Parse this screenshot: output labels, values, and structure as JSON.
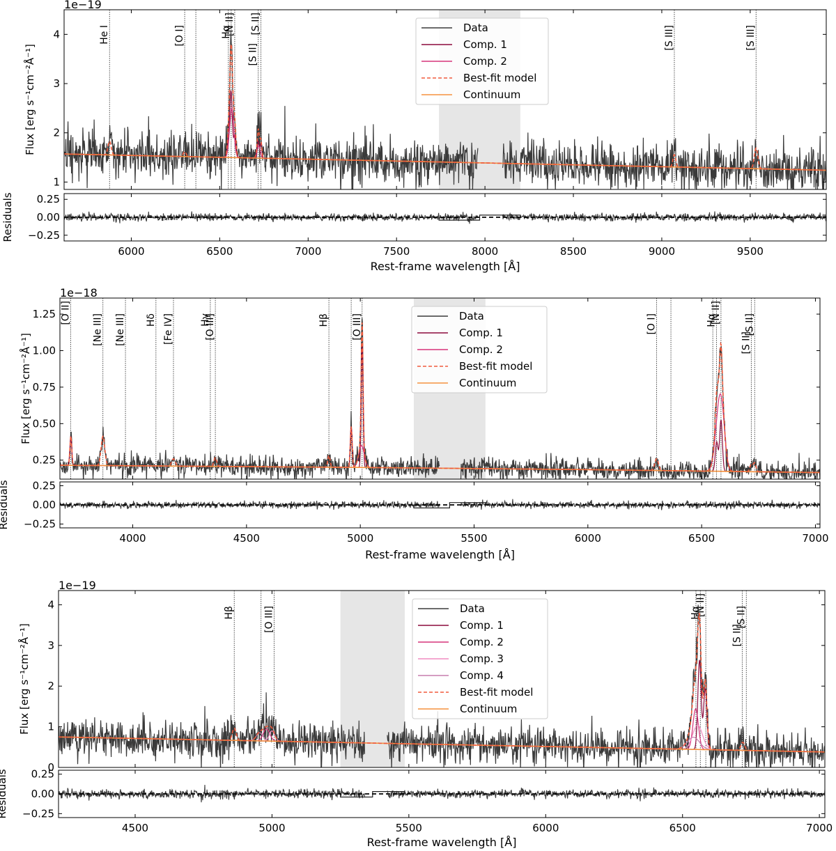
{
  "chart_data": [
    {
      "type": "line",
      "panel": "top",
      "multiplier_label": "1e−19",
      "xlabel": "Rest-frame wavelength [Å]",
      "ylabel": "Flux [erg s⁻¹cm⁻²Å⁻¹]",
      "residuals_label": "Residuals",
      "xlim": [
        5620,
        9930
      ],
      "ylim": [
        0.85,
        4.5
      ],
      "res_ylim": [
        -0.33,
        0.33
      ],
      "xticks": [
        6000,
        6500,
        7000,
        7500,
        8000,
        8500,
        9000,
        9500
      ],
      "yticks": [
        1,
        2,
        3,
        4
      ],
      "res_yticks": [
        -0.25,
        0.0,
        0.25
      ],
      "res_ytick_labels": [
        "−0.25",
        "0.00",
        "0.25"
      ],
      "masked_region": [
        7740,
        8200
      ],
      "gap_region": [
        7960,
        8100
      ],
      "continuum": {
        "x": [
          5620,
          9930
        ],
        "y": [
          1.57,
          1.24
        ]
      },
      "noise": 0.22,
      "components": [
        {
          "name": "Comp. 1",
          "lines": [
            {
              "center": 6564,
              "amp": 1.35,
              "sigma": 7
            },
            {
              "center": 6549,
              "amp": 0.3,
              "sigma": 6
            },
            {
              "center": 6585,
              "amp": 0.45,
              "sigma": 6
            },
            {
              "center": 6718,
              "amp": 0.35,
              "sigma": 5
            },
            {
              "center": 6733,
              "amp": 0.3,
              "sigma": 5
            }
          ]
        },
        {
          "name": "Comp. 2",
          "lines": [
            {
              "center": 6568,
              "amp": 1.0,
              "sigma": 12
            },
            {
              "center": 6720,
              "amp": 0.25,
              "sigma": 9
            }
          ]
        }
      ],
      "extra_model_lines": [
        {
          "center": 5877,
          "amp": 0.28,
          "sigma": 9
        },
        {
          "center": 6302,
          "amp": 0.1,
          "sigma": 8
        },
        {
          "center": 9071,
          "amp": 0.25,
          "sigma": 8
        },
        {
          "center": 9533,
          "amp": 0.42,
          "sigma": 10
        }
      ],
      "line_markers": [
        {
          "x": 5877,
          "label": "He I",
          "row": 1
        },
        {
          "x": 6302,
          "label": "[O I]",
          "row": 1
        },
        {
          "x": 6365,
          "label": "",
          "row": 1
        },
        {
          "x": 6549,
          "label": "",
          "row": 1
        },
        {
          "x": 6565,
          "label": "Hα",
          "row": 1
        },
        {
          "x": 6585,
          "label": "[N II]",
          "row": 0
        },
        {
          "x": 6718,
          "label": "[S II]",
          "row": 2
        },
        {
          "x": 6733,
          "label": "[S II]",
          "row": 0
        },
        {
          "x": 9071,
          "label": "[S III]",
          "row": 1
        },
        {
          "x": 9533,
          "label": "[S III]",
          "row": 1
        }
      ],
      "legend": [
        "Data",
        "Comp. 1",
        "Comp. 2",
        "Best-fit model",
        "Continuum"
      ]
    },
    {
      "type": "line",
      "panel": "middle",
      "multiplier_label": "1e−18",
      "xlabel": "Rest-frame wavelength [Å]",
      "ylabel": "Flux [erg s⁻¹cm⁻²Å⁻¹]",
      "residuals_label": "Residuals",
      "xlim": [
        3680,
        7020
      ],
      "ylim": [
        0.12,
        1.36
      ],
      "res_ylim": [
        -0.3,
        0.3
      ],
      "xticks": [
        4000,
        4500,
        5000,
        5500,
        6000,
        6500,
        7000
      ],
      "yticks": [
        0.25,
        0.5,
        0.75,
        1.0,
        1.25
      ],
      "ytick_labels": [
        "0.25",
        "0.50",
        "0.75",
        "1.00",
        "1.25"
      ],
      "res_yticks": [
        -0.25,
        0.0,
        0.25
      ],
      "res_ytick_labels": [
        "−0.25",
        "0.00",
        "0.25"
      ],
      "masked_region": [
        5235,
        5550
      ],
      "gap_region": [
        5350,
        5440
      ],
      "continuum": {
        "x": [
          3680,
          5000,
          6000,
          7020
        ],
        "y": [
          0.215,
          0.2,
          0.185,
          0.165
        ]
      },
      "noise": 0.035,
      "components": [
        {
          "name": "Comp. 1",
          "lines": [
            {
              "center": 5008,
              "amp": 0.85,
              "sigma": 4
            },
            {
              "center": 4960,
              "amp": 0.28,
              "sigma": 4
            },
            {
              "center": 6566,
              "amp": 0.2,
              "sigma": 6
            },
            {
              "center": 6585,
              "amp": 0.35,
              "sigma": 6
            },
            {
              "center": 3728,
              "amp": 0.2,
              "sigma": 4
            }
          ]
        },
        {
          "name": "Comp. 2",
          "lines": [
            {
              "center": 5005,
              "amp": 0.15,
              "sigma": 12
            },
            {
              "center": 6575,
              "amp": 0.35,
              "sigma": 16
            },
            {
              "center": 6590,
              "amp": 0.25,
              "sigma": 14
            }
          ]
        }
      ],
      "extra_model_lines": [
        {
          "center": 3869,
          "amp": 0.2,
          "sigma": 8
        },
        {
          "center": 4179,
          "amp": 0.05,
          "sigma": 8
        },
        {
          "center": 4363,
          "amp": 0.06,
          "sigma": 6
        },
        {
          "center": 4862,
          "amp": 0.08,
          "sigma": 5
        },
        {
          "center": 6302,
          "amp": 0.08,
          "sigma": 8
        },
        {
          "center": 6718,
          "amp": 0.05,
          "sigma": 6
        },
        {
          "center": 6733,
          "amp": 0.06,
          "sigma": 6
        }
      ],
      "line_markers": [
        {
          "x": 3727,
          "label": "[O II]",
          "row": 0
        },
        {
          "x": 3869,
          "label": "[Ne III]",
          "row": 1
        },
        {
          "x": 3968,
          "label": "[Ne III]",
          "row": 1
        },
        {
          "x": 4102,
          "label": "Hδ",
          "row": 1
        },
        {
          "x": 4179,
          "label": "[Fe IV]",
          "row": 1
        },
        {
          "x": 4341,
          "label": "Hγ",
          "row": 1
        },
        {
          "x": 4363,
          "label": "[O III]",
          "row": 1
        },
        {
          "x": 4862,
          "label": "Hβ",
          "row": 1
        },
        {
          "x": 4960,
          "label": "",
          "row": 1
        },
        {
          "x": 5008,
          "label": "[O III]",
          "row": 1
        },
        {
          "x": 6302,
          "label": "[O I]",
          "row": 1
        },
        {
          "x": 6365,
          "label": "",
          "row": 1
        },
        {
          "x": 6549,
          "label": "",
          "row": 1
        },
        {
          "x": 6565,
          "label": "Hα",
          "row": 1
        },
        {
          "x": 6585,
          "label": "[N II]",
          "row": 0
        },
        {
          "x": 6718,
          "label": "[S II]",
          "row": 2
        },
        {
          "x": 6733,
          "label": "[S II]",
          "row": 1
        }
      ],
      "legend": [
        "Data",
        "Comp. 1",
        "Comp. 2",
        "Best-fit model",
        "Continuum"
      ]
    },
    {
      "type": "line",
      "panel": "bottom",
      "multiplier_label": "1e−19",
      "xlabel": "Rest-frame wavelength [Å]",
      "ylabel": "Flux [erg s⁻¹cm⁻²Å⁻¹]",
      "residuals_label": "Residuals",
      "xlim": [
        4220,
        7020
      ],
      "ylim": [
        0.0,
        4.35
      ],
      "res_ylim": [
        -0.3,
        0.3
      ],
      "xticks": [
        4500,
        5000,
        5500,
        6000,
        6500,
        7000
      ],
      "yticks": [
        0,
        1,
        2,
        3,
        4
      ],
      "res_yticks": [
        -0.25,
        0.0,
        0.25
      ],
      "res_ytick_labels": [
        "−0.25",
        "0.00",
        "0.25"
      ],
      "masked_region": [
        5250,
        5485
      ],
      "gap_region": [
        5340,
        5420
      ],
      "continuum": {
        "x": [
          4220,
          7020
        ],
        "y": [
          0.75,
          0.38
        ]
      },
      "noise": 0.22,
      "components": [
        {
          "name": "Comp. 1",
          "lines": [
            {
              "center": 6562,
              "amp": 2.2,
              "sigma": 6
            },
            {
              "center": 6583,
              "amp": 1.5,
              "sigma": 6
            }
          ]
        },
        {
          "name": "Comp. 2",
          "lines": [
            {
              "center": 6548,
              "amp": 1.0,
              "sigma": 10
            },
            {
              "center": 4980,
              "amp": 0.3,
              "sigma": 12
            }
          ]
        },
        {
          "name": "Comp. 3",
          "lines": [
            {
              "center": 6555,
              "amp": 0.6,
              "sigma": 18
            },
            {
              "center": 5000,
              "amp": 0.25,
              "sigma": 10
            }
          ]
        },
        {
          "name": "Comp. 4",
          "lines": [
            {
              "center": 6540,
              "amp": 0.3,
              "sigma": 22
            },
            {
              "center": 4955,
              "amp": 0.2,
              "sigma": 12
            }
          ]
        }
      ],
      "extra_model_lines": [
        {
          "center": 4862,
          "amp": 0.3,
          "sigma": 7
        },
        {
          "center": 6720,
          "amp": 0.2,
          "sigma": 7
        }
      ],
      "line_markers": [
        {
          "x": 4862,
          "label": "Hβ",
          "row": 1
        },
        {
          "x": 4960,
          "label": "",
          "row": 1
        },
        {
          "x": 5008,
          "label": "[O III]",
          "row": 1
        },
        {
          "x": 6549,
          "label": "",
          "row": 1
        },
        {
          "x": 6565,
          "label": "Hα",
          "row": 1
        },
        {
          "x": 6585,
          "label": "[N II]",
          "row": 0
        },
        {
          "x": 6718,
          "label": "[S II]",
          "row": 2
        },
        {
          "x": 6733,
          "label": "[S II]",
          "row": 1
        }
      ],
      "legend": [
        "Data",
        "Comp. 1",
        "Comp. 2",
        "Comp. 3",
        "Comp. 4",
        "Best-fit model",
        "Continuum"
      ]
    }
  ],
  "colors": {
    "data": "#3a3a3a",
    "comp1": "#8b0a3c",
    "comp2": "#d6337a",
    "comp3": "#f08cc0",
    "comp4": "#c77dad",
    "best_fit": "#f05a3c",
    "continuum": "#f5923e",
    "masked": "#e6e6e6"
  }
}
